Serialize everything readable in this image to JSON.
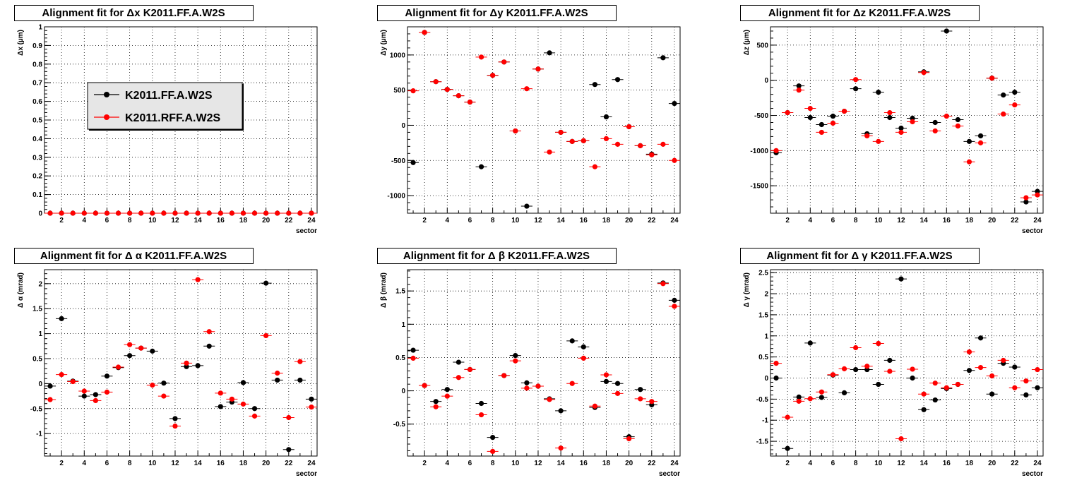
{
  "colors": {
    "series1": "#000000",
    "series2": "#ff0000",
    "grid": "#000000",
    "legend_bg": "#e6e6e6"
  },
  "legend": {
    "items": [
      "K2011.FF.A.W2S",
      "K2011.RFF.A.W2S"
    ]
  },
  "chart_data": [
    {
      "type": "scatter",
      "title": "Alignment fit for   Δx K2011.FF.A.W2S",
      "xlabel": "sector",
      "ylabel": "Δx (µm)",
      "xlim": [
        0.5,
        24.5
      ],
      "ylim": [
        0,
        1
      ],
      "xticks": [
        2,
        4,
        6,
        8,
        10,
        12,
        14,
        16,
        18,
        20,
        22,
        24
      ],
      "yticks": [
        0,
        0.1,
        0.2,
        0.3,
        0.4,
        0.5,
        0.6,
        0.7,
        0.8,
        0.9,
        1
      ],
      "grid": true,
      "series": [
        {
          "name": "K2011.FF.A.W2S",
          "values": [
            0,
            0,
            0,
            0,
            0,
            0,
            0,
            0,
            0,
            0,
            0,
            0,
            0,
            0,
            0,
            0,
            0,
            0,
            0,
            0,
            0,
            0,
            0,
            0
          ]
        },
        {
          "name": "K2011.RFF.A.W2S",
          "values": [
            0,
            0,
            0,
            0,
            0,
            0,
            0,
            0,
            0,
            0,
            0,
            0,
            0,
            0,
            0,
            0,
            0,
            0,
            0,
            0,
            0,
            0,
            0,
            0
          ]
        }
      ]
    },
    {
      "type": "scatter",
      "title": "Alignment fit for   Δy K2011.FF.A.W2S",
      "xlabel": "",
      "ylabel": "Δy (µm)",
      "xlim": [
        0.5,
        24.5
      ],
      "ylim": [
        -1250,
        1400
      ],
      "xticks": [
        2,
        4,
        6,
        8,
        10,
        12,
        14,
        16,
        18,
        20,
        22,
        24
      ],
      "yticks": [
        -1000,
        -500,
        0,
        500,
        1000
      ],
      "grid": true,
      "series": [
        {
          "name": "K2011.FF.A.W2S",
          "values": [
            -530,
            1320,
            620,
            510,
            420,
            330,
            -590,
            710,
            900,
            -80,
            -1150,
            800,
            1030,
            -100,
            -230,
            -220,
            580,
            120,
            650,
            -20,
            -290,
            -410,
            960,
            310
          ]
        },
        {
          "name": "K2011.RFF.A.W2S",
          "values": [
            490,
            1320,
            620,
            510,
            420,
            330,
            970,
            710,
            900,
            -80,
            520,
            800,
            -380,
            -100,
            -230,
            -220,
            -590,
            -190,
            -270,
            -20,
            -290,
            -420,
            -270,
            -500
          ]
        }
      ]
    },
    {
      "type": "scatter",
      "title": "Alignment fit for   Δz K2011.FF.A.W2S",
      "xlabel": "sector",
      "ylabel": "Δz (µm)",
      "xlim": [
        0.5,
        24.5
      ],
      "ylim": [
        -1890,
        760
      ],
      "xticks": [
        2,
        4,
        6,
        8,
        10,
        12,
        14,
        16,
        18,
        20,
        22,
        24
      ],
      "yticks": [
        -1500,
        -1000,
        -500,
        0,
        500
      ],
      "grid": true,
      "series": [
        {
          "name": "K2011.FF.A.W2S",
          "values": [
            -1030,
            -460,
            -80,
            -530,
            -630,
            -510,
            -440,
            -120,
            -760,
            -170,
            -530,
            -680,
            -540,
            120,
            -600,
            700,
            -560,
            -870,
            -790,
            30,
            -210,
            -170,
            -1730,
            -1580
          ]
        },
        {
          "name": "K2011.RFF.A.W2S",
          "values": [
            -1000,
            -460,
            -140,
            -400,
            -740,
            -610,
            -440,
            10,
            -790,
            -870,
            -460,
            -740,
            -590,
            110,
            -720,
            -510,
            -650,
            -1160,
            -890,
            30,
            -480,
            -350,
            -1670,
            -1630
          ]
        }
      ]
    },
    {
      "type": "scatter",
      "title": "Alignment fit for   Δ α K2011.FF.A.W2S",
      "xlabel": "sector",
      "ylabel": "Δ α (mrad)",
      "xlim": [
        0.5,
        24.5
      ],
      "ylim": [
        -1.45,
        2.28
      ],
      "xticks": [
        2,
        4,
        6,
        8,
        10,
        12,
        14,
        16,
        18,
        20,
        22,
        24
      ],
      "yticks": [
        -1,
        -0.5,
        0,
        0.5,
        1,
        1.5,
        2
      ],
      "grid": true,
      "series": [
        {
          "name": "K2011.FF.A.W2S",
          "values": [
            -0.05,
            1.3,
            0.05,
            -0.25,
            -0.22,
            0.15,
            0.32,
            0.56,
            0.71,
            0.65,
            0.01,
            -0.7,
            0.34,
            0.36,
            0.75,
            -0.46,
            -0.37,
            0.02,
            -0.5,
            2.01,
            0.07,
            -1.32,
            0.07,
            -0.31
          ]
        },
        {
          "name": "K2011.RFF.A.W2S",
          "values": [
            -0.32,
            0.18,
            0.04,
            -0.15,
            -0.34,
            -0.17,
            0.33,
            0.78,
            0.71,
            -0.03,
            -0.25,
            -0.85,
            0.41,
            2.08,
            1.04,
            -0.19,
            -0.31,
            -0.41,
            -0.65,
            0.96,
            0.21,
            -0.68,
            0.44,
            -0.47
          ]
        }
      ]
    },
    {
      "type": "scatter",
      "title": "Alignment fit for   Δ β K2011.FF.A.W2S",
      "xlabel": "sector",
      "ylabel": "Δ β (mrad)",
      "xlim": [
        0.5,
        24.5
      ],
      "ylim": [
        -0.98,
        1.82
      ],
      "xticks": [
        2,
        4,
        6,
        8,
        10,
        12,
        14,
        16,
        18,
        20,
        22,
        24
      ],
      "yticks": [
        -0.5,
        0,
        0.5,
        1,
        1.5
      ],
      "grid": true,
      "series": [
        {
          "name": "K2011.FF.A.W2S",
          "values": [
            0.61,
            0.08,
            -0.16,
            0.02,
            0.43,
            0.32,
            -0.19,
            -0.7,
            0.23,
            0.53,
            0.12,
            0.07,
            -0.12,
            -0.3,
            0.75,
            0.66,
            -0.25,
            0.14,
            0.11,
            -0.69,
            0.02,
            -0.21,
            1.62,
            1.36
          ]
        },
        {
          "name": "K2011.RFF.A.W2S",
          "values": [
            0.49,
            0.08,
            -0.24,
            -0.08,
            0.2,
            0.32,
            -0.36,
            -0.91,
            0.23,
            0.45,
            0.04,
            0.07,
            -0.13,
            -0.86,
            0.11,
            0.49,
            -0.23,
            0.24,
            -0.04,
            -0.72,
            -0.12,
            -0.16,
            1.61,
            1.27
          ]
        }
      ]
    },
    {
      "type": "scatter",
      "title": "Alignment fit for   Δ γ K2011.FF.A.W2S",
      "xlabel": "sector",
      "ylabel": "Δ γ (mrad)",
      "xlim": [
        0.5,
        24.5
      ],
      "ylim": [
        -1.85,
        2.57
      ],
      "xticks": [
        2,
        4,
        6,
        8,
        10,
        12,
        14,
        16,
        18,
        20,
        22,
        24
      ],
      "yticks": [
        -1.5,
        -1,
        -0.5,
        0,
        0.5,
        1,
        1.5,
        2,
        2.5
      ],
      "grid": true,
      "series": [
        {
          "name": "K2011.FF.A.W2S",
          "values": [
            0,
            -1.67,
            -0.45,
            0.83,
            -0.46,
            0.07,
            -0.35,
            0.2,
            0.2,
            -0.15,
            0.42,
            2.35,
            0,
            -0.75,
            -0.52,
            -0.25,
            -0.15,
            0.18,
            0.95,
            -0.38,
            0.35,
            0.26,
            -0.4,
            -0.23
          ]
        },
        {
          "name": "K2011.RFF.A.W2S",
          "values": [
            0.35,
            -0.93,
            -0.55,
            -0.49,
            -0.33,
            0.08,
            0.22,
            0.72,
            0.28,
            0.82,
            0.16,
            -1.44,
            0.21,
            -0.38,
            -0.12,
            -0.23,
            -0.15,
            0.62,
            0.25,
            0.05,
            0.42,
            -0.23,
            -0.07,
            0.2
          ]
        }
      ]
    }
  ]
}
